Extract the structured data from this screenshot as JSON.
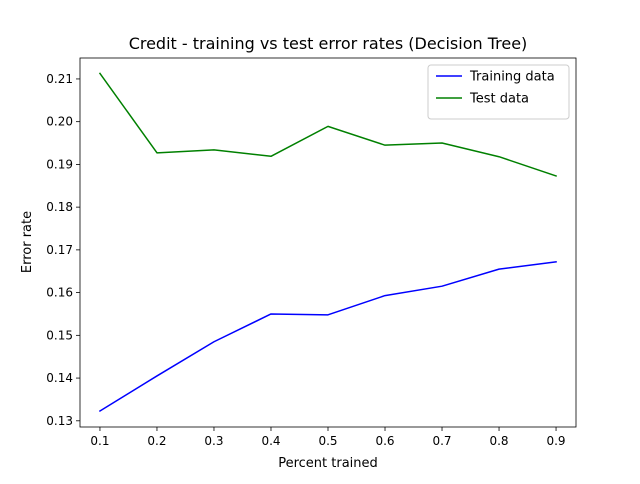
{
  "chart_data": {
    "type": "line",
    "title": "Credit - training vs test error rates (Decision Tree)",
    "xlabel": "Percent trained",
    "ylabel": "Error rate",
    "x": [
      0.1,
      0.2,
      0.3,
      0.4,
      0.5,
      0.6,
      0.7,
      0.8,
      0.9
    ],
    "xlim": [
      0.065,
      0.935
    ],
    "ylim": [
      0.12855,
      0.2149
    ],
    "xticks": [
      0.1,
      0.2,
      0.3,
      0.4,
      0.5,
      0.6,
      0.7,
      0.8,
      0.9
    ],
    "yticks": [
      0.13,
      0.14,
      0.15,
      0.16,
      0.17,
      0.18,
      0.19,
      0.2,
      0.21
    ],
    "xtick_labels": [
      "0.1",
      "0.2",
      "0.3",
      "0.4",
      "0.5",
      "0.6",
      "0.7",
      "0.8",
      "0.9"
    ],
    "ytick_labels": [
      "0.13",
      "0.14",
      "0.15",
      "0.16",
      "0.17",
      "0.18",
      "0.19",
      "0.20",
      "0.21"
    ],
    "grid": false,
    "legend_position": "upper-right",
    "series": [
      {
        "name": "Training data",
        "color": "#0000ff",
        "values": [
          0.1323,
          0.1405,
          0.1485,
          0.155,
          0.1548,
          0.1593,
          0.1615,
          0.1655,
          0.1672
        ]
      },
      {
        "name": "Test data",
        "color": "#008000",
        "values": [
          0.2113,
          0.1927,
          0.1934,
          0.1919,
          0.1989,
          0.1945,
          0.195,
          0.1918,
          0.1873
        ]
      }
    ]
  }
}
